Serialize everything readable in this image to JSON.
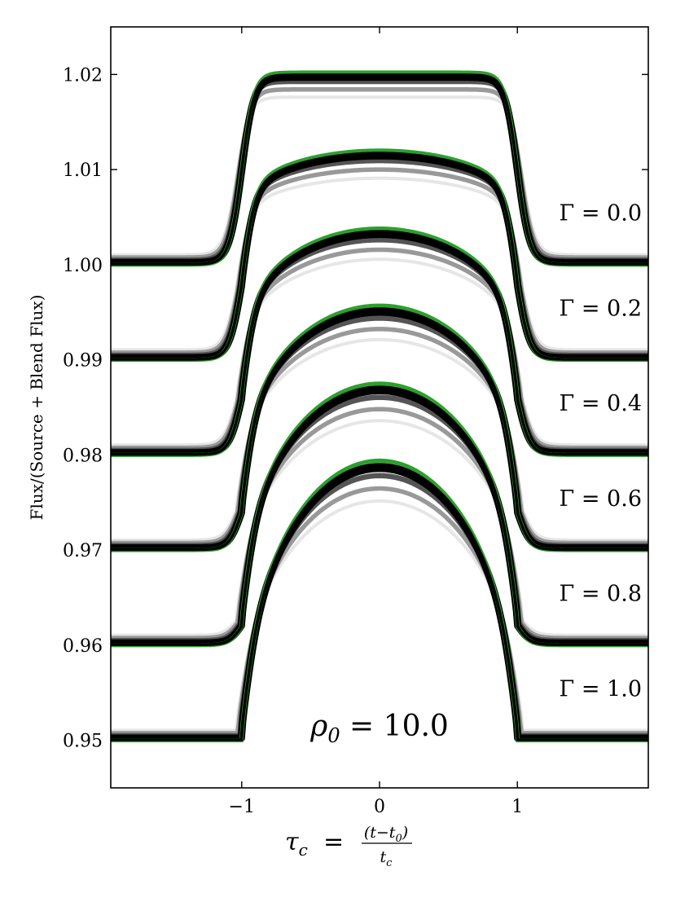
{
  "chart_data": {
    "type": "line",
    "title": "",
    "xlabel": {
      "lhs": "τ",
      "lhs_sub": "c",
      "eq": "=",
      "numerator": "(t−t",
      "numerator_sub": "0",
      "numerator_close": ")",
      "denominator": "t",
      "denominator_sub": "c"
    },
    "ylabel": "Flux/(Source + Blend Flux)",
    "xlim": [
      -1.95,
      1.95
    ],
    "ylim": [
      0.945,
      1.025
    ],
    "xticks": [
      {
        "value": -1,
        "label": "−1"
      },
      {
        "value": 0,
        "label": "0"
      },
      {
        "value": 1,
        "label": "1"
      }
    ],
    "yticks": [
      {
        "value": 0.95,
        "label": "0.95"
      },
      {
        "value": 0.96,
        "label": "0.96"
      },
      {
        "value": 0.97,
        "label": "0.97"
      },
      {
        "value": 0.98,
        "label": "0.98"
      },
      {
        "value": 0.99,
        "label": "0.99"
      },
      {
        "value": 1.0,
        "label": "1.00"
      },
      {
        "value": 1.01,
        "label": "1.01"
      },
      {
        "value": 1.02,
        "label": "1.02"
      }
    ],
    "annotation": {
      "base": "ρ",
      "sub": "0",
      "text": " = 10.0",
      "x": 0.0,
      "y": 0.9515
    },
    "gamma_groups": [
      {
        "label": "Γ = 0.0",
        "gamma": 0.0,
        "baseline": 1.0,
        "peak": 1.0202,
        "label_y": 1.0055
      },
      {
        "label": "Γ = 0.2",
        "gamma": 0.2,
        "baseline": 0.99,
        "peak": 1.012,
        "label_y": 0.9955
      },
      {
        "label": "Γ = 0.4",
        "gamma": 0.4,
        "baseline": 0.98,
        "peak": 1.0038,
        "label_y": 0.9855
      },
      {
        "label": "Γ = 0.6",
        "gamma": 0.6,
        "baseline": 0.97,
        "peak": 0.9957,
        "label_y": 0.9755
      },
      {
        "label": "Γ = 0.8",
        "gamma": 0.8,
        "baseline": 0.96,
        "peak": 0.9875,
        "label_y": 0.9655
      },
      {
        "label": "Γ = 1.0",
        "gamma": 1.0,
        "baseline": 0.95,
        "peak": 0.9794,
        "label_y": 0.9555
      }
    ],
    "curve_shades": [
      {
        "color": "#e6e6e6",
        "amp_frac": 0.82,
        "base_off": 0.00105,
        "width": 4
      },
      {
        "color": "#999999",
        "amp_frac": 0.875,
        "base_off": 0.00075,
        "width": 5.5
      },
      {
        "color": "#555555",
        "amp_frac": 0.93,
        "base_off": 0.00048,
        "width": 6.5
      },
      {
        "color": "#000000",
        "amp_frac": 0.965,
        "base_off": 0.00022,
        "width": 9
      }
    ],
    "model_color": "#2ca02c",
    "grid": false,
    "legend": "none"
  }
}
